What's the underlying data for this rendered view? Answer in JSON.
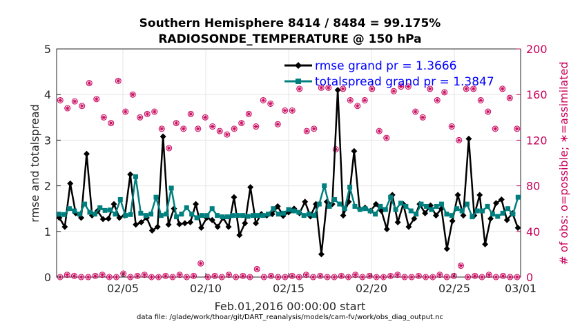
{
  "chart_data": {
    "type": "line",
    "title": "Southern Hemisphere 8414 / 8484 = 99.175%",
    "subtitle": "RADIOSONDE_TEMPERATURE @ 150 hPa",
    "xlabel": "Feb.01,2016 00:00:00 start",
    "ylabel": "rmse and totalspread",
    "ylabel_right": "# of obs: o=possible; ∗=assimilated",
    "footer": "data file: /glade/work/thoar/git/DART_reanalysis/models/cam-fv/work/obs_diag_output.nc",
    "xlim": [
      1,
      29
    ],
    "ylim": [
      0,
      5
    ],
    "ylim_right": [
      0,
      200
    ],
    "x_ticks": [
      {
        "value": 5,
        "label": "02/05"
      },
      {
        "value": 10,
        "label": "02/10"
      },
      {
        "value": 15,
        "label": "02/15"
      },
      {
        "value": 20,
        "label": "02/20"
      },
      {
        "value": 25,
        "label": "02/25"
      },
      {
        "value": 29,
        "label": "03/01"
      }
    ],
    "y_ticks": [
      "0",
      "1",
      "2",
      "3",
      "4",
      "5"
    ],
    "y_ticks_right": [
      "0",
      "40",
      "80",
      "120",
      "160",
      "200"
    ],
    "grid": true,
    "colors": {
      "rmse": "#000000",
      "spread": "#007f7f",
      "obs": "#c8005a",
      "legend_text": "#0000ff"
    },
    "legend_position": "top-right",
    "series": [
      {
        "name": "rmse grand pr = 1.3666",
        "marker": "diamond",
        "values": [
          1.3,
          1.1,
          2.05,
          1.4,
          1.3,
          2.7,
          1.35,
          1.45,
          1.27,
          1.28,
          1.6,
          1.3,
          1.35,
          2.25,
          1.15,
          1.2,
          1.3,
          1.02,
          1.1,
          3.08,
          1.15,
          1.5,
          1.16,
          1.18,
          1.2,
          1.6,
          1.08,
          1.3,
          1.25,
          1.1,
          1.3,
          1.1,
          1.75,
          0.92,
          1.18,
          1.97,
          1.18,
          1.38,
          1.35,
          1.38,
          1.55,
          1.34,
          1.42,
          1.5,
          1.4,
          1.65,
          1.33,
          1.6,
          0.5,
          1.65,
          1.6,
          4.1,
          1.35,
          1.65,
          2.76,
          1.5,
          1.52,
          1.45,
          1.6,
          1.45,
          1.05,
          1.8,
          1.2,
          1.6,
          1.1,
          1.28,
          1.6,
          1.4,
          1.57,
          1.35,
          1.5,
          0.62,
          1.23,
          1.8,
          1.35,
          3.03,
          1.35,
          1.8,
          0.72,
          1.28,
          1.62,
          1.7,
          1.25,
          1.4,
          1.08
        ]
      },
      {
        "name": "totalspread grand pr = 1.3847",
        "marker": "square",
        "values": [
          1.38,
          1.37,
          1.5,
          1.45,
          1.38,
          1.6,
          1.42,
          1.38,
          1.52,
          1.46,
          1.47,
          1.38,
          1.7,
          1.35,
          1.37,
          2.2,
          1.4,
          1.35,
          1.38,
          1.75,
          1.35,
          1.38,
          1.95,
          1.32,
          1.38,
          1.52,
          1.38,
          1.3,
          1.35,
          1.35,
          1.5,
          1.35,
          1.32,
          1.32,
          1.35,
          1.35,
          1.35,
          1.33,
          1.35,
          1.35,
          1.35,
          1.38,
          1.5,
          1.38,
          1.4,
          1.48,
          1.45,
          1.42,
          1.35,
          1.38,
          1.35,
          1.6,
          2.0,
          1.55,
          1.7,
          1.6,
          1.5,
          1.97,
          1.55,
          1.48,
          1.5,
          1.45,
          1.38,
          1.55,
          1.48,
          1.75,
          1.48,
          1.62,
          1.55,
          1.45,
          1.38,
          1.6,
          1.55,
          1.48,
          1.55,
          1.6,
          1.38,
          1.35,
          1.5,
          1.45,
          1.6,
          1.32,
          1.45,
          1.45,
          1.55,
          1.38,
          1.33,
          1.4,
          1.5,
          1.38,
          1.75
        ]
      },
      {
        "name": "obs possible (top)",
        "marker": "circle",
        "axis": "right",
        "values": [
          155,
          148,
          154,
          150,
          170,
          156,
          140,
          135,
          172,
          145,
          160,
          140,
          143,
          145,
          130,
          113,
          135,
          130,
          143,
          130,
          140,
          132,
          128,
          125,
          130,
          135,
          143,
          132,
          155,
          152,
          134,
          146,
          146,
          165,
          128,
          130,
          166,
          166,
          112,
          165,
          155,
          150,
          155,
          165,
          128,
          122,
          163,
          167,
          167,
          145,
          140,
          165,
          155,
          162,
          132,
          120,
          165,
          165,
          155,
          145,
          130,
          165,
          157,
          130
        ]
      },
      {
        "name": "obs possible (bottom)",
        "marker": "circle",
        "axis": "right",
        "values": [
          0,
          2,
          1,
          0,
          0,
          1,
          2,
          0,
          0,
          3,
          0,
          1,
          2,
          0,
          0,
          1,
          0,
          2,
          0,
          1,
          12,
          0,
          1,
          0,
          2,
          0,
          1,
          0,
          7,
          0,
          1,
          0,
          0,
          1,
          0,
          2,
          0,
          1,
          0,
          0,
          1,
          0,
          2,
          0,
          1,
          0,
          0,
          1,
          2,
          0,
          0,
          1,
          0,
          0,
          2,
          0,
          1,
          10,
          0,
          1,
          0,
          2,
          0,
          1,
          0,
          0
        ]
      }
    ]
  }
}
